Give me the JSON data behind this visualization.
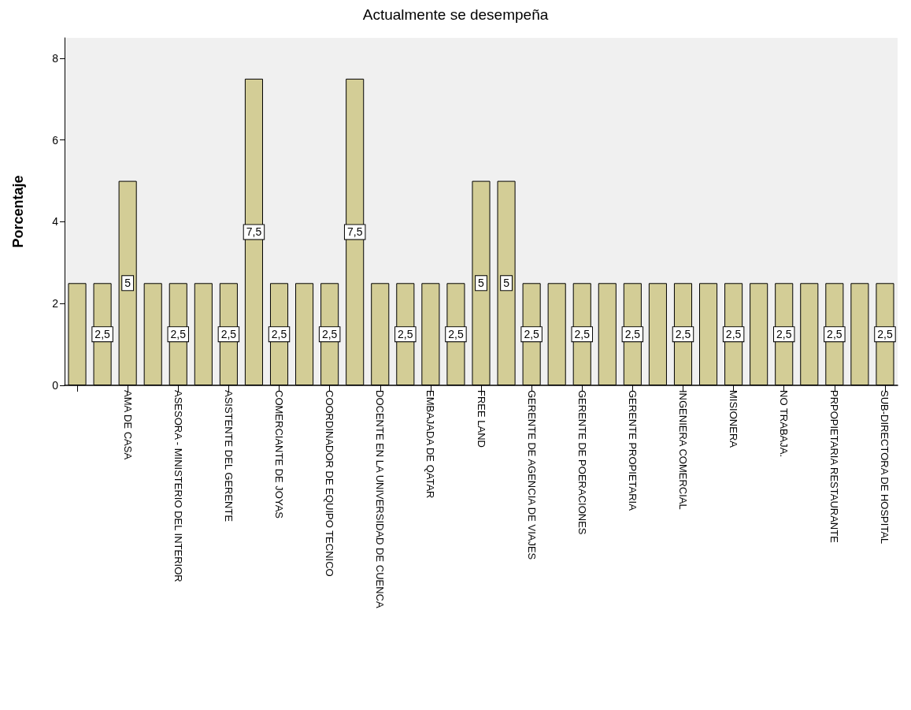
{
  "chart_data": {
    "type": "bar",
    "title": "Actualmente se desempeña",
    "ylabel": "Porcentaje",
    "categories": [
      null,
      null,
      "AMA DE CASA",
      null,
      "ASESORA - MINISTERIO DEL INTERIOR",
      null,
      "ASISTENTE DEL GERENTE",
      null,
      "COMERCIANTE DE JOYAS",
      null,
      "COORDINADOR DE EQUIPO TECNICO",
      null,
      "DOCENTE EN LA UNIVERSIDAD DE CUENCA",
      null,
      "EMBAJADA DE QATAR",
      null,
      "FREE LAND",
      null,
      "GERENTE DE AGENCIA DE VIAJES",
      null,
      "GERENTE DE POERACIONES",
      null,
      "GERENTE PROPIETARIA",
      null,
      "INGENIERA COMERCIAL",
      null,
      "MISIONERA",
      null,
      "NO TRABAJA.",
      null,
      "PRPOPIETARIA RESTAURANTE",
      null,
      "SUB-DIRECTORA DE HOSPITAL"
    ],
    "series": [
      {
        "color": "#d3cd96",
        "values": [
          2.5,
          2.5,
          5,
          2.5,
          2.5,
          2.5,
          2.5,
          7.5,
          2.5,
          2.5,
          2.5,
          7.5,
          2.5,
          2.5,
          2.5,
          2.5,
          5,
          5,
          2.5,
          2.5,
          2.5,
          2.5,
          2.5,
          2.5,
          2.5,
          2.5,
          2.5,
          2.5,
          2.5,
          2.5,
          2.5,
          2.5,
          2.5
        ],
        "value_labels": [
          null,
          "2,5",
          "5",
          null,
          "2,5",
          null,
          "2,5",
          "7,5",
          "2,5",
          null,
          "2,5",
          "7,5",
          null,
          "2,5",
          null,
          "2,5",
          "5",
          "5",
          "2,5",
          null,
          "2,5",
          null,
          "2,5",
          null,
          "2,5",
          null,
          "2,5",
          null,
          "2,5",
          null,
          "2,5",
          null,
          "2,5"
        ]
      }
    ],
    "ylim": [
      0,
      8.5
    ],
    "yticks": [
      0,
      2,
      4,
      6,
      8
    ]
  }
}
